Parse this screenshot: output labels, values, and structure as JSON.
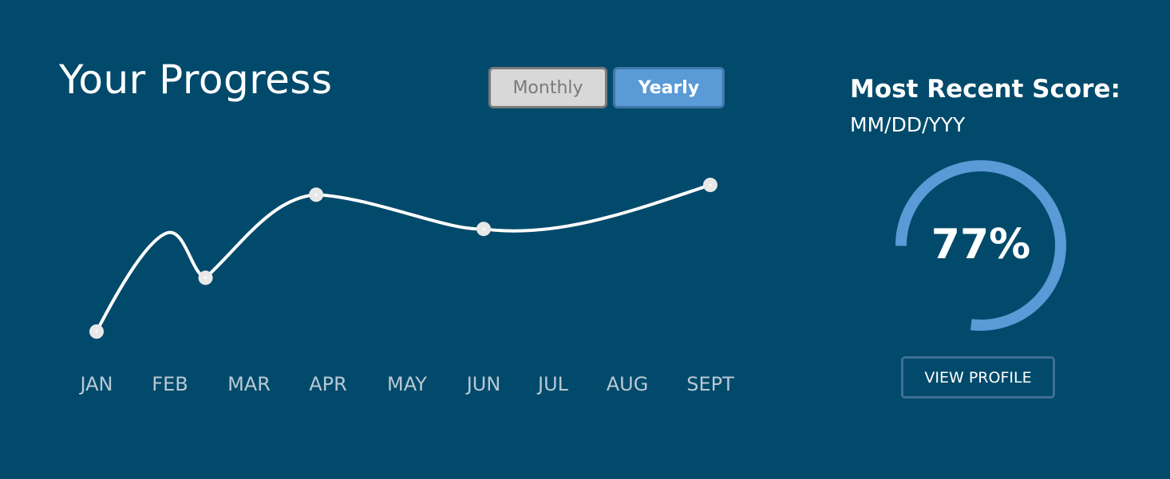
{
  "header": {
    "title": "Your Progress"
  },
  "toggle": {
    "monthly_label": "Monthly",
    "yearly_label": "Yearly",
    "selected": "Yearly"
  },
  "score": {
    "title": "Most Recent Score:",
    "date": "MM/DD/YYY",
    "value_label": "77%",
    "value": 77,
    "ring_color": "#5a9ad6"
  },
  "profile": {
    "button_label": "VIEW PROFILE"
  },
  "colors": {
    "background": "#024a6b",
    "line": "#ffffff",
    "monthly_bg": "#d8d8d8",
    "yearly_bg": "#5a9ad6"
  },
  "chart_data": {
    "type": "line",
    "categories": [
      "JAN",
      "FEB",
      "MAR",
      "APR",
      "MAY",
      "JUN",
      "JUL",
      "AUG",
      "SEPT"
    ],
    "series": [
      {
        "points": [
          {
            "x": 0.0,
            "y": 10
          },
          {
            "x": 1.45,
            "y": 43
          },
          {
            "x": 2.85,
            "y": 94
          },
          {
            "x": 5.0,
            "y": 73
          },
          {
            "x": 8.0,
            "y": 100
          }
        ]
      }
    ],
    "xlabel": "",
    "ylabel": "",
    "grid": false,
    "markers": true
  }
}
